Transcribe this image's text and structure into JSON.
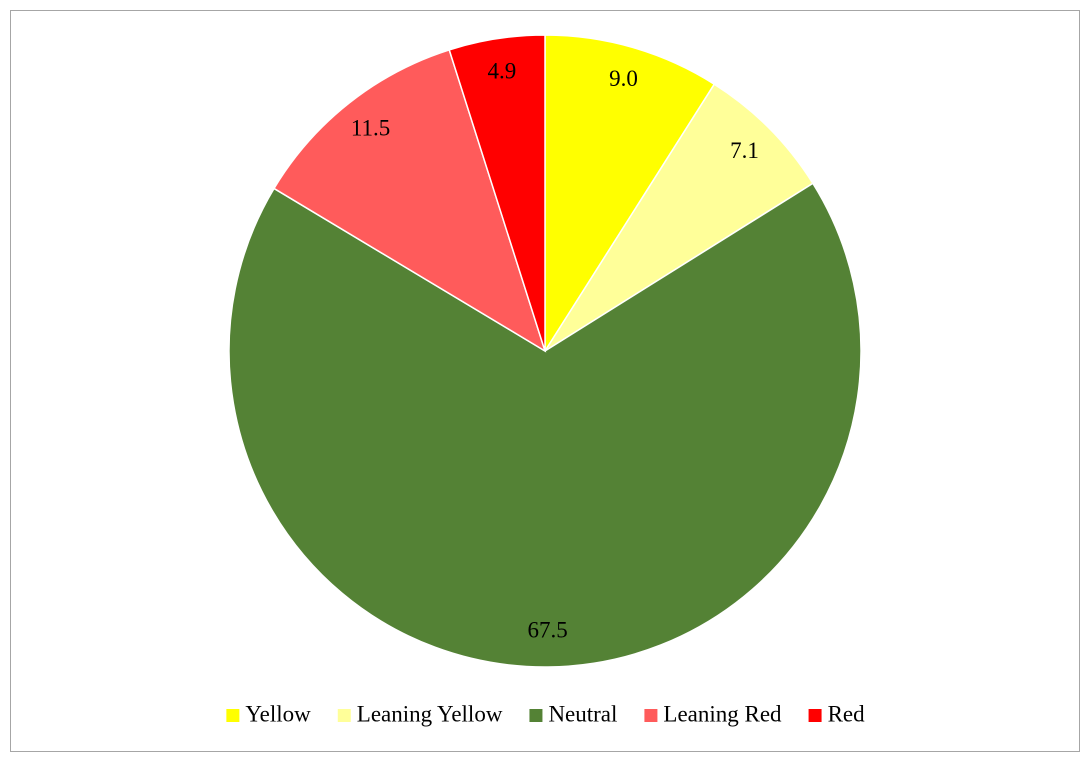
{
  "chart_data": {
    "type": "pie",
    "categories": [
      "Yellow",
      "Leaning Yellow",
      "Neutral",
      "Leaning Red",
      "Red"
    ],
    "values": [
      9.0,
      7.1,
      67.5,
      11.5,
      4.9
    ],
    "value_labels": [
      "9.0",
      "7.1",
      "67.5",
      "11.5",
      "4.9"
    ],
    "colors": [
      "#ffff00",
      "#ffff99",
      "#548235",
      "#ff5b5b",
      "#ff0000"
    ],
    "legend": "bottom"
  }
}
